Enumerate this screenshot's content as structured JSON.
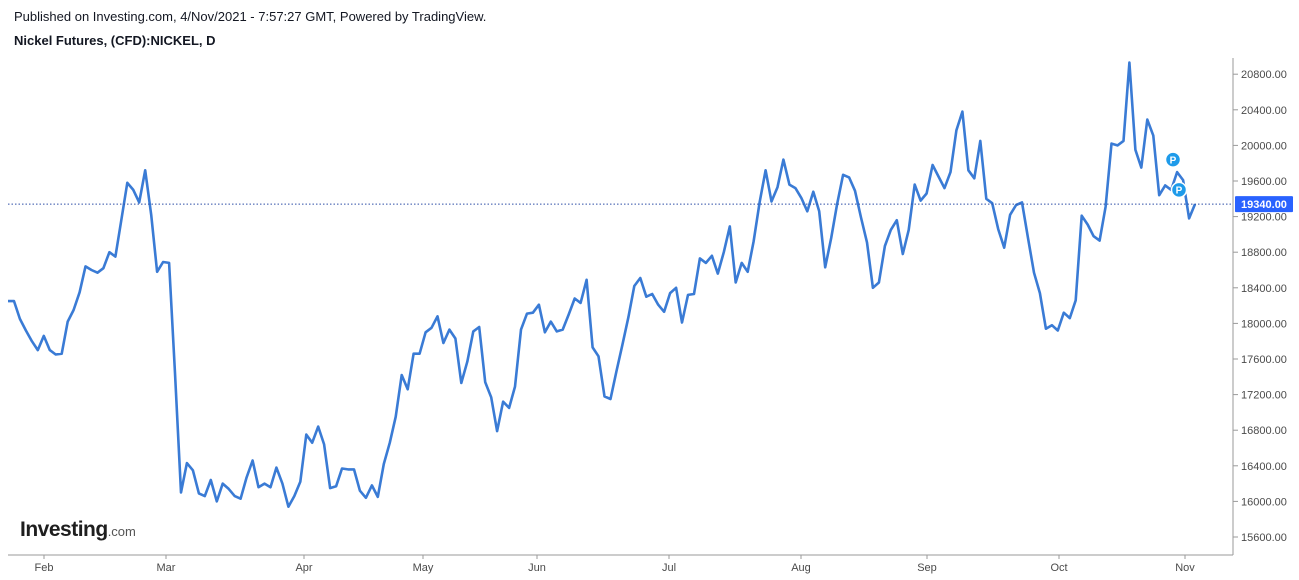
{
  "header": {
    "published": "Published on Investing.com, 4/Nov/2021 - 7:57:27 GMT, Powered by TradingView.",
    "symbol": "Nickel Futures, (CFD):NICKEL, D"
  },
  "logo": {
    "brand": "Investing",
    "suffix": ".com"
  },
  "colors": {
    "line": "#3a7bd5",
    "price_tag": "#2962ff",
    "marker": "#1e9bea",
    "grid": "#e6e6e6"
  },
  "chart_data": {
    "type": "line",
    "series": [
      {
        "values": [
          18250,
          18250,
          18050,
          17920,
          17800,
          17700,
          17860,
          17700,
          17650,
          17660,
          18020,
          18150,
          18350,
          18640,
          18600,
          18570,
          18620,
          18800,
          18750,
          19160,
          19580,
          19500,
          19360,
          19720,
          19220,
          18580,
          18690,
          18680,
          17440,
          16100,
          16430,
          16350,
          16090,
          16060,
          16240,
          16000,
          16200,
          16140,
          16060,
          16030,
          16270,
          16460,
          16160,
          16200,
          16160,
          16380,
          16200,
          15940,
          16060,
          16220,
          16750,
          16660,
          16840,
          16640,
          16150,
          16170,
          16370,
          16360,
          16360,
          16120,
          16040,
          16180,
          16050,
          16420,
          16660,
          16950,
          17420,
          17260,
          17660,
          17660,
          17900,
          17950,
          18080,
          17780,
          17930,
          17830,
          17330,
          17570,
          17910,
          17960,
          17340,
          17170,
          16790,
          17120,
          17050,
          17290,
          17930,
          18110,
          18120,
          18210,
          17900,
          18020,
          17910,
          17930,
          18100,
          18280,
          18230,
          18490,
          17730,
          17630,
          17180,
          17150,
          17460,
          17760,
          18070,
          18420,
          18510,
          18300,
          18330,
          18210,
          18130,
          18340,
          18400,
          18010,
          18320,
          18330,
          18730,
          18680,
          18760,
          18560,
          18800,
          19090,
          18460,
          18680,
          18580,
          18920,
          19360,
          19720,
          19370,
          19530,
          19840,
          19560,
          19520,
          19410,
          19260,
          19480,
          19260,
          18630,
          18960,
          19340,
          19670,
          19640,
          19490,
          19190,
          18910,
          18400,
          18460,
          18870,
          19050,
          19160,
          18780,
          19050,
          19560,
          19380,
          19460,
          19780,
          19650,
          19520,
          19700,
          20170,
          20380,
          19720,
          19630,
          20050,
          19400,
          19350,
          19060,
          18850,
          19220,
          19330,
          19360,
          18960,
          18570,
          18340,
          17940,
          17980,
          17920,
          18120,
          18060,
          18260,
          19210,
          19110,
          18980,
          18930,
          19310,
          20020,
          20000,
          20050,
          20930,
          19950,
          19750,
          20290,
          20110,
          19440,
          19550,
          19500,
          19700,
          19610,
          19180,
          19340
        ]
      }
    ],
    "x_labels": [
      "Feb",
      "Mar",
      "Apr",
      "May",
      "Jun",
      "Jul",
      "Aug",
      "Sep",
      "Oct",
      "Nov"
    ],
    "y_ticks": [
      "15600.00",
      "16000.00",
      "16400.00",
      "16800.00",
      "17200.00",
      "17600.00",
      "18000.00",
      "18400.00",
      "18800.00",
      "19200.00",
      "19600.00",
      "20000.00",
      "20400.00",
      "20800.00"
    ],
    "ylim": [
      15440,
      21000
    ],
    "last_price": "19340.00",
    "markers": [
      {
        "label": "P",
        "value": 19840
      },
      {
        "label": "P",
        "value": 19500
      }
    ]
  }
}
